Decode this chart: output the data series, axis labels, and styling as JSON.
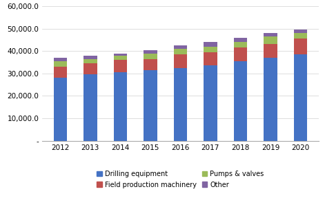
{
  "years": [
    "2012",
    "2013",
    "2014",
    "2015",
    "2016",
    "2017",
    "2018",
    "2019",
    "2020"
  ],
  "drilling_equipment": [
    28000,
    29500,
    30500,
    31500,
    32500,
    33500,
    35500,
    37000,
    38500
  ],
  "field_production_machinery": [
    5000,
    5000,
    5500,
    5000,
    6000,
    6000,
    6000,
    6000,
    7000
  ],
  "pumps_valves": [
    2500,
    2000,
    2000,
    2500,
    2500,
    2500,
    2500,
    3500,
    2500
  ],
  "other": [
    1500,
    1500,
    1000,
    1500,
    1500,
    2000,
    2000,
    1500,
    1500
  ],
  "colors": {
    "drilling_equipment": "#4472C4",
    "field_production_machinery": "#C0504D",
    "pumps_valves": "#9BBB59",
    "other": "#8064A2"
  },
  "legend_labels": [
    "Drilling equipment",
    "Field production machinery",
    "Pumps & valves",
    "Other"
  ],
  "ylim": [
    0,
    60000
  ],
  "yticks": [
    0,
    10000,
    20000,
    30000,
    40000,
    50000,
    60000
  ],
  "ytick_labels": [
    "-",
    "10,000.0",
    "20,000.0",
    "30,000.0",
    "40,000.0",
    "50,000.0",
    "60,000.0"
  ],
  "background_color": "#ffffff",
  "grid_color": "#d0d0d0"
}
